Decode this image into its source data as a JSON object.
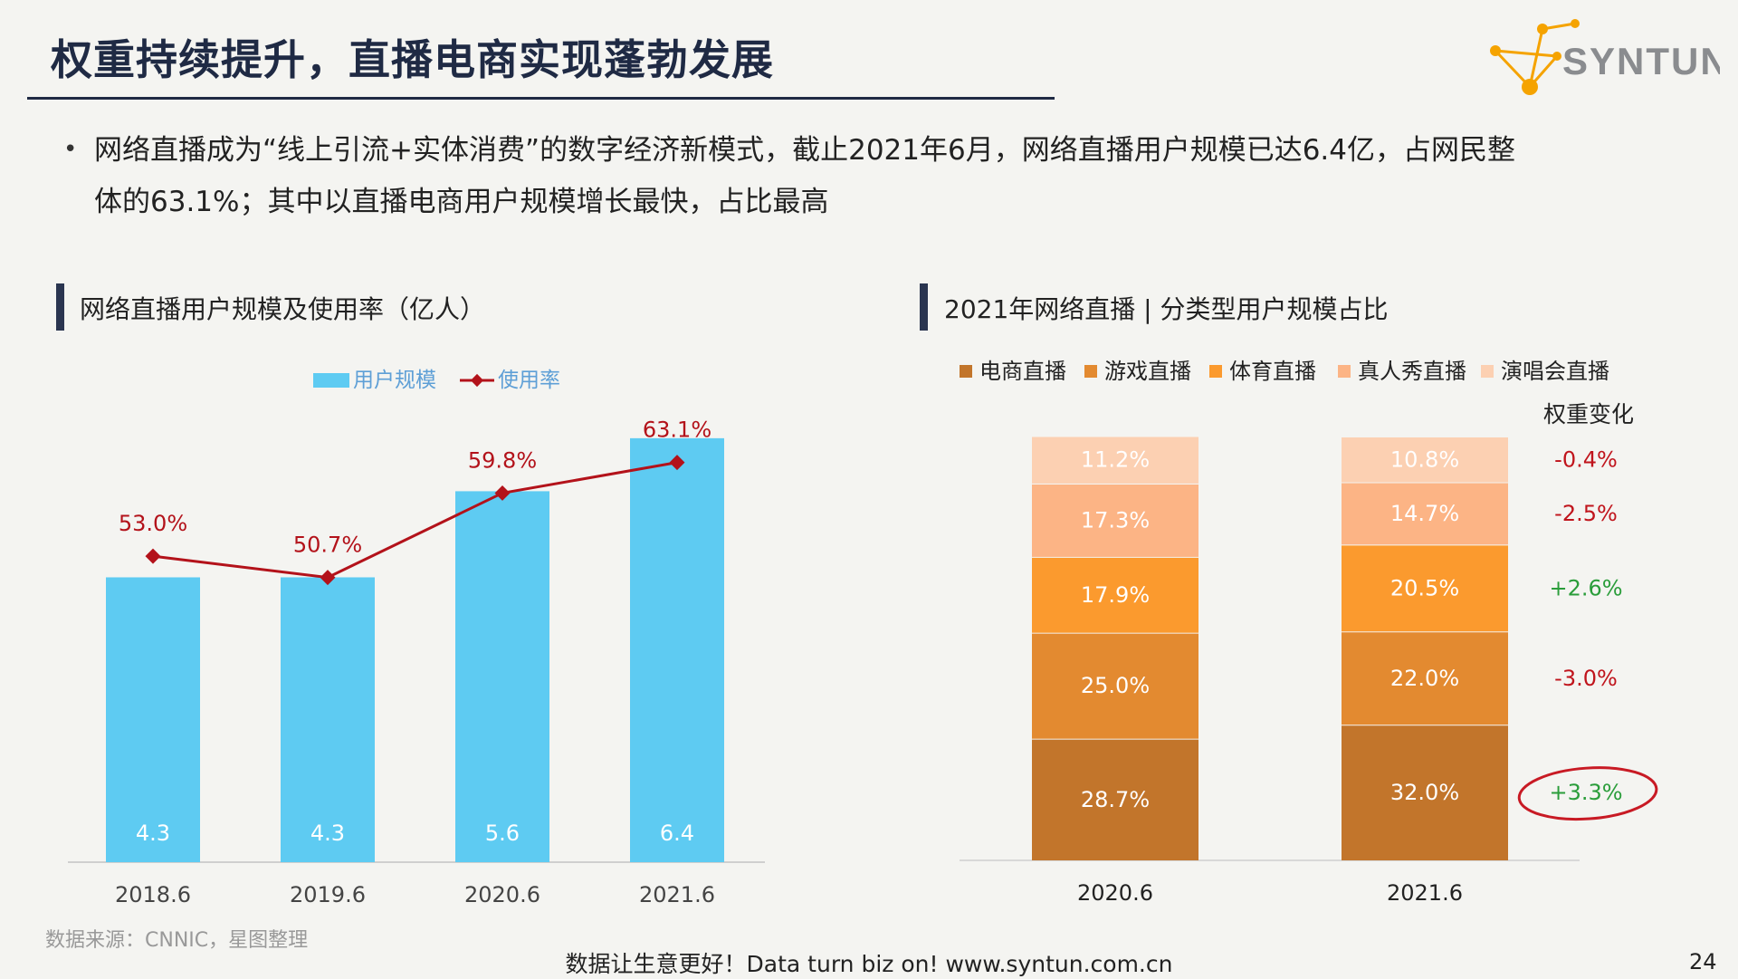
{
  "header": {
    "title": "权重持续提升，直播电商实现蓬勃发展",
    "logo_text": "SYNTUN"
  },
  "bullet": {
    "line1": "网络直播成为“线上引流+实体消费”的数字经济新模式，截止2021年6月，网络直播用户规模已达6.4亿，占网民整",
    "line2": "体的63.1%；其中以直播电商用户规模增长最快，占比最高"
  },
  "left_chart": {
    "section_title": "网络直播用户规模及使用率（亿人）",
    "legend": {
      "bar_label": "用户规模",
      "line_label": "使用率"
    },
    "colors": {
      "bar": "#5ecbf2",
      "line": "#b3121a",
      "axis": "#cfcfcf"
    }
  },
  "right_chart": {
    "section_title": "2021年网络直播 | 分类型用户规模占比",
    "change_header": "权重变化"
  },
  "chart_data": [
    {
      "type": "bar",
      "title": "网络直播用户规模及使用率（亿人）",
      "categories": [
        "2018.6",
        "2019.6",
        "2020.6",
        "2021.6"
      ],
      "series": [
        {
          "name": "用户规模",
          "type": "bar",
          "values": [
            4.3,
            4.3,
            5.6,
            6.4
          ],
          "labels": [
            "4.3",
            "4.3",
            "5.6",
            "6.4"
          ]
        },
        {
          "name": "使用率",
          "type": "line",
          "values": [
            53.0,
            50.7,
            59.8,
            63.1
          ],
          "labels": [
            "53.0%",
            "50.7%",
            "59.8%",
            "63.1%"
          ]
        }
      ],
      "bar_ylim": [
        0,
        7.0
      ],
      "line_ylim": [
        20,
        70
      ],
      "grid": false
    },
    {
      "type": "bar",
      "stacked": true,
      "title": "2021年网络直播 | 分类型用户规模占比",
      "categories": [
        "2020.6",
        "2021.6"
      ],
      "series": [
        {
          "name": "电商直播",
          "color": "#c2752b",
          "values": [
            28.7,
            32.0
          ],
          "labels": [
            "28.7%",
            "32.0%"
          ],
          "change": "+3.3%",
          "change_color": "#2a9d3a",
          "circled": true
        },
        {
          "name": "游戏直播",
          "color": "#e38a30",
          "values": [
            25.0,
            22.0
          ],
          "labels": [
            "25.0%",
            "22.0%"
          ],
          "change": "-3.0%",
          "change_color": "#c0141c"
        },
        {
          "name": "体育直播",
          "color": "#fb9a2e",
          "values": [
            17.9,
            20.5
          ],
          "labels": [
            "17.9%",
            "20.5%"
          ],
          "change": "+2.6%",
          "change_color": "#2a9d3a"
        },
        {
          "name": "真人秀直播",
          "color": "#fcb485",
          "values": [
            17.3,
            14.7
          ],
          "labels": [
            "17.3%",
            "14.7%"
          ],
          "change": "-2.5%",
          "change_color": "#c0141c"
        },
        {
          "name": "演唱会直播",
          "color": "#fcd0b2",
          "values": [
            11.2,
            10.8
          ],
          "labels": [
            "11.2%",
            "10.8%"
          ],
          "change": "-0.4%",
          "change_color": "#c0141c"
        }
      ],
      "ylim": [
        0,
        100
      ]
    }
  ],
  "footer": {
    "source": "数据来源：CNNIC，星图整理",
    "slogan": "数据让生意更好！Data turn biz on!  www.syntun.com.cn",
    "page_number": "24"
  }
}
